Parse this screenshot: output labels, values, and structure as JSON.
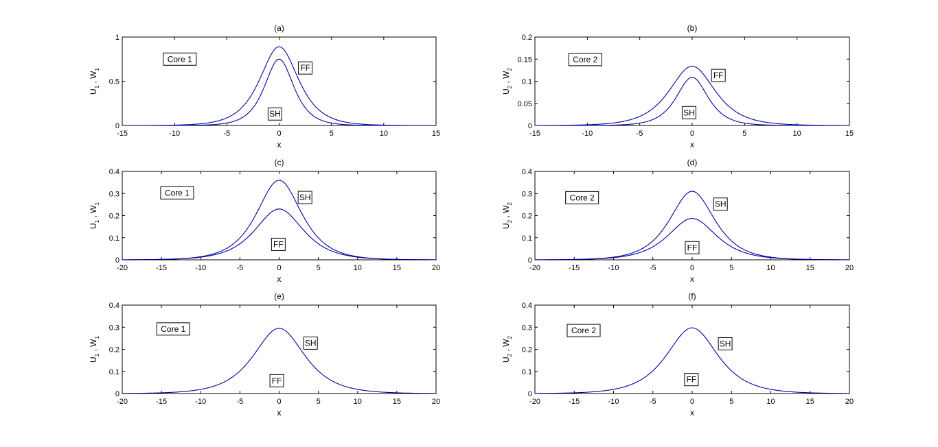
{
  "chart_data": [
    {
      "type": "line",
      "title": "(a)",
      "xlabel": "x",
      "ylabel": {
        "parts": [
          "U",
          "1",
          " , W",
          "1"
        ]
      },
      "xlim": [
        -15,
        15
      ],
      "ylim": [
        0,
        1
      ],
      "xticks": [
        "-15",
        "-10",
        "-5",
        "0",
        "5",
        "10",
        "15"
      ],
      "yticks": [
        "0",
        "0.5",
        "1"
      ],
      "series": [
        {
          "label_ref": "FF",
          "peak": 0.89,
          "width": 1.65
        },
        {
          "label_ref": "SH",
          "peak": 0.75,
          "width": 1.25
        }
      ],
      "annotations": [
        {
          "text": "Core 1",
          "x": -9.5,
          "y": 0.75
        },
        {
          "text": "FF",
          "x": 2.5,
          "y": 0.65
        },
        {
          "text": "SH",
          "x": -0.4,
          "y": 0.13
        }
      ]
    },
    {
      "type": "line",
      "title": "(b)",
      "xlabel": "x",
      "ylabel": {
        "parts": [
          "U",
          "2",
          " , W",
          "2"
        ]
      },
      "xlim": [
        -15,
        15
      ],
      "ylim": [
        0,
        0.2
      ],
      "xticks": [
        "-15",
        "-10",
        "-5",
        "0",
        "5",
        "10",
        "15"
      ],
      "yticks": [
        "0",
        "0.05",
        "0.1",
        "0.15",
        "0.2"
      ],
      "series": [
        {
          "label_ref": "FF",
          "peak": 0.134,
          "width": 1.95
        },
        {
          "label_ref": "SH",
          "peak": 0.109,
          "width": 1.35
        }
      ],
      "annotations": [
        {
          "text": "Core 2",
          "x": -10.2,
          "y": 0.149
        },
        {
          "text": "FF",
          "x": 2.5,
          "y": 0.113
        },
        {
          "text": "SH",
          "x": -0.3,
          "y": 0.029
        }
      ]
    },
    {
      "type": "line",
      "title": "(c)",
      "xlabel": "x",
      "ylabel": {
        "parts": [
          "U",
          "1",
          " , W",
          "1"
        ]
      },
      "xlim": [
        -20,
        20
      ],
      "ylim": [
        0,
        0.4
      ],
      "xticks": [
        "-20",
        "-15",
        "-10",
        "-5",
        "0",
        "5",
        "10",
        "15",
        "20"
      ],
      "yticks": [
        "0",
        "0.1",
        "0.2",
        "0.3",
        "0.4"
      ],
      "series": [
        {
          "label_ref": "SH",
          "peak": 0.36,
          "width": 2.55
        },
        {
          "label_ref": "FF",
          "peak": 0.23,
          "width": 2.75
        }
      ],
      "annotations": [
        {
          "text": "Core 1",
          "x": -13.0,
          "y": 0.303
        },
        {
          "text": "SH",
          "x": 3.3,
          "y": 0.282
        },
        {
          "text": "FF",
          "x": -0.1,
          "y": 0.07
        }
      ]
    },
    {
      "type": "line",
      "title": "(d)",
      "xlabel": "x",
      "ylabel": {
        "parts": [
          "U",
          "2",
          " , W",
          "2"
        ]
      },
      "xlim": [
        -20,
        20
      ],
      "ylim": [
        0,
        0.4
      ],
      "xticks": [
        "-20",
        "-15",
        "-10",
        "-5",
        "0",
        "5",
        "10",
        "15",
        "20"
      ],
      "yticks": [
        "0",
        "0.1",
        "0.2",
        "0.3",
        "0.4"
      ],
      "series": [
        {
          "label_ref": "SH",
          "peak": 0.31,
          "width": 2.55
        },
        {
          "label_ref": "FF",
          "peak": 0.187,
          "width": 2.75
        }
      ],
      "annotations": [
        {
          "text": "Core 2",
          "x": -14.0,
          "y": 0.281
        },
        {
          "text": "SH",
          "x": 3.6,
          "y": 0.252
        },
        {
          "text": "FF",
          "x": 0.0,
          "y": 0.055
        }
      ]
    },
    {
      "type": "line",
      "title": "(e)",
      "xlabel": "x",
      "ylabel": {
        "parts": [
          "U",
          "1",
          " , W",
          "1"
        ]
      },
      "xlim": [
        -20,
        20
      ],
      "ylim": [
        0,
        0.4
      ],
      "xticks": [
        "-20",
        "-15",
        "-10",
        "-5",
        "0",
        "5",
        "10",
        "15",
        "20"
      ],
      "yticks": [
        "0",
        "0.1",
        "0.2",
        "0.3",
        "0.4"
      ],
      "series": [
        {
          "label_ref": "SH",
          "peak": 0.295,
          "width": 2.9
        }
      ],
      "annotations": [
        {
          "text": "Core 1",
          "x": -13.5,
          "y": 0.292
        },
        {
          "text": "SH",
          "x": 4.0,
          "y": 0.228
        },
        {
          "text": "FF",
          "x": -0.3,
          "y": 0.058
        }
      ]
    },
    {
      "type": "line",
      "title": "(f)",
      "xlabel": "x",
      "ylabel": {
        "parts": [
          "U",
          "2",
          " , W",
          "2"
        ]
      },
      "xlim": [
        -20,
        20
      ],
      "ylim": [
        0,
        0.4
      ],
      "xticks": [
        "-20",
        "-15",
        "-10",
        "-5",
        "0",
        "5",
        "10",
        "15",
        "20"
      ],
      "yticks": [
        "0",
        "0.1",
        "0.2",
        "0.3",
        "0.4"
      ],
      "series": [
        {
          "label_ref": "SH",
          "peak": 0.297,
          "width": 2.9
        }
      ],
      "annotations": [
        {
          "text": "Core 2",
          "x": -13.8,
          "y": 0.285
        },
        {
          "text": "SH",
          "x": 4.2,
          "y": 0.225
        },
        {
          "text": "FF",
          "x": -0.1,
          "y": 0.063
        }
      ]
    }
  ],
  "colors": {
    "line": "#0000a0",
    "axis": "#000000",
    "background": "#ffffff"
  }
}
